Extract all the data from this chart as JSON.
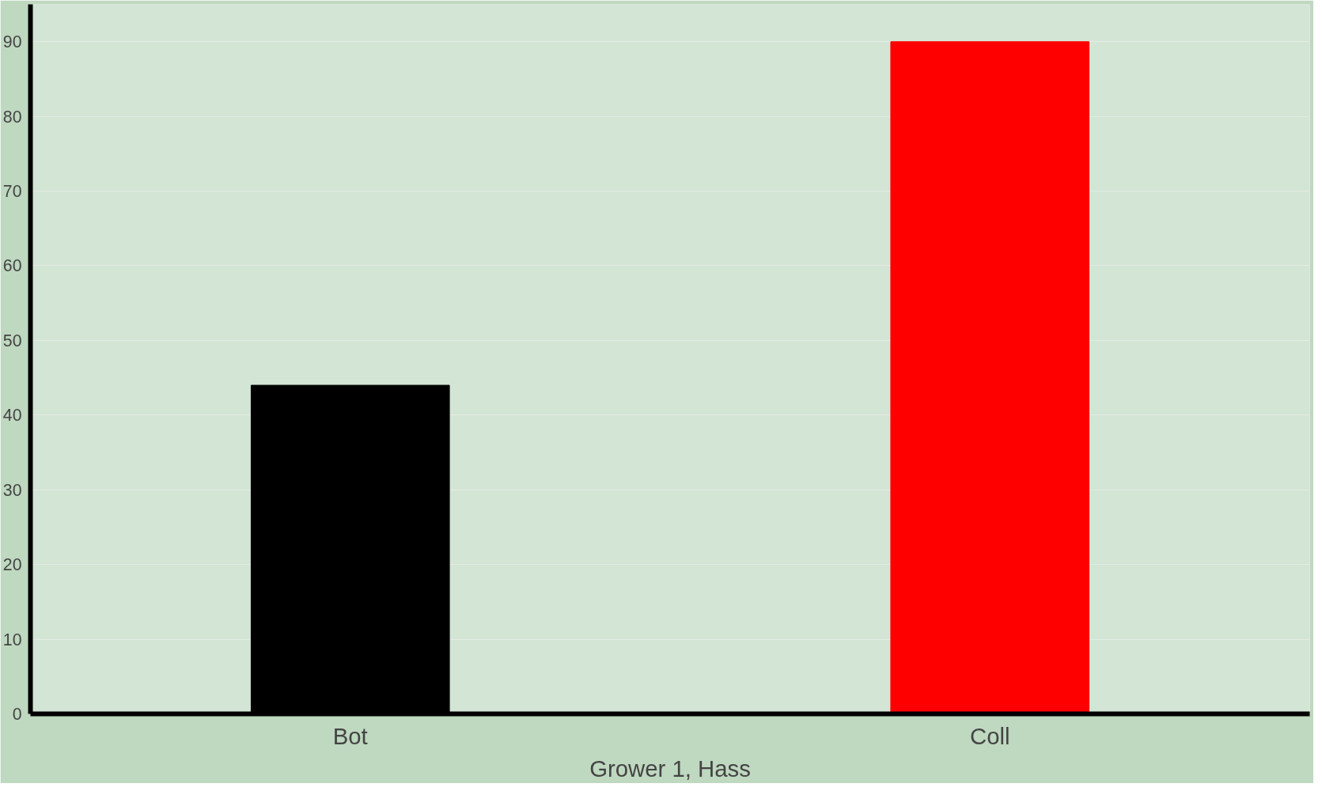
{
  "chart_data": {
    "type": "bar",
    "xlabel": "Grower 1, Hass",
    "categories": [
      "Bot",
      "Coll"
    ],
    "values": [
      44,
      90
    ],
    "colors": [
      "#000000",
      "#ff0000"
    ],
    "ylim": [
      0,
      95
    ],
    "yticks": [
      0,
      10,
      20,
      30,
      40,
      50,
      60,
      70,
      80,
      90
    ],
    "grid": "y"
  }
}
